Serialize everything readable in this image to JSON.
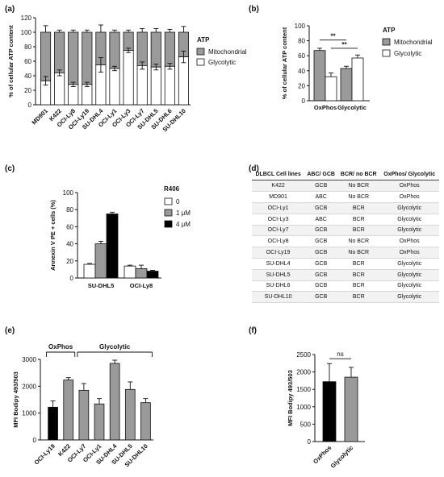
{
  "panels": {
    "a": "(a)",
    "b": "(b)",
    "c": "(c)",
    "d": "(d)",
    "e": "(e)",
    "f": "(f)"
  },
  "colors": {
    "mitochondrial": "#9a9a9a",
    "glycolytic": "#ffffff",
    "r0": "#ffffff",
    "r1": "#9a9a9a",
    "r4": "#000000",
    "bodipy": "#9a9a9a",
    "bodipy_f": "#000000",
    "bodipy_f2": "#9a9a9a"
  },
  "chart_data": [
    {
      "panel": "a",
      "type": "bar",
      "stacked": true,
      "ylabel": "% of cellular ATP content",
      "ylim": [
        0,
        120
      ],
      "yticks": [
        0,
        20,
        40,
        60,
        80,
        100,
        120
      ],
      "legend_title": "ATP",
      "legend_position": "right",
      "categories": [
        "MD901",
        "K422",
        "OCI-Ly8",
        "OCI-Ly19",
        "SU-DHL4",
        "OCI-Ly1",
        "OCI-Ly3",
        "OCI-Ly7",
        "SU-DHL5",
        "SU-DHL6",
        "SU-DHL10"
      ],
      "series": [
        {
          "name": "Glycolytic",
          "values": [
            33,
            44,
            28,
            28,
            55,
            50,
            75,
            54,
            52,
            53,
            66
          ],
          "errors": [
            6,
            4,
            3,
            3,
            10,
            3,
            3,
            5,
            4,
            4,
            8
          ]
        },
        {
          "name": "Mitochondrial",
          "values": [
            67,
            56,
            72,
            72,
            45,
            50,
            25,
            46,
            48,
            47,
            34
          ],
          "errors": [
            9,
            3,
            3,
            3,
            10,
            3,
            3,
            5,
            5,
            4,
            8
          ]
        }
      ]
    },
    {
      "panel": "b",
      "type": "bar",
      "grouped": true,
      "ylabel": "% of cellular ATP content",
      "ylim": [
        0,
        100
      ],
      "yticks": [
        0,
        20,
        40,
        60,
        80,
        100
      ],
      "legend_title": "ATP",
      "legend_position": "right",
      "categories": [
        "OxPhos",
        "Glycolytic"
      ],
      "series": [
        {
          "name": "Mitochondrial",
          "values": [
            67,
            43
          ],
          "errors": [
            3,
            3
          ]
        },
        {
          "name": "Glycolytic",
          "values": [
            32,
            57
          ],
          "errors": [
            5,
            4
          ]
        }
      ],
      "annotations": [
        "**",
        "**"
      ]
    },
    {
      "panel": "c",
      "type": "bar",
      "grouped": true,
      "ylabel": "Annexin V PE + cells (%)",
      "ylim": [
        0,
        100
      ],
      "yticks": [
        0,
        20,
        40,
        60,
        80,
        100
      ],
      "legend_title": "R406",
      "legend_position": "right",
      "categories": [
        "SU-DHL5",
        "OCI-Ly8"
      ],
      "series": [
        {
          "name": "0",
          "values": [
            16,
            14
          ],
          "errors": [
            1,
            1
          ]
        },
        {
          "name": "1 μM",
          "values": [
            40,
            11
          ],
          "errors": [
            3,
            4
          ]
        },
        {
          "name": "4 μM",
          "values": [
            75,
            8
          ],
          "errors": [
            2,
            1
          ]
        }
      ]
    },
    {
      "panel": "e",
      "type": "bar",
      "ylabel": "MFI Bodipy 493/503",
      "ylim": [
        0,
        3000
      ],
      "yticks": [
        0,
        1000,
        2000,
        3000
      ],
      "group_labels": [
        "OxPhos",
        "Glycolytic"
      ],
      "categories": [
        "OCI-Ly19",
        "K422",
        "OCI-Ly7",
        "OCI-Ly1",
        "SU-DHL4",
        "SU-DHL5",
        "SU-DHL10"
      ],
      "values": [
        1220,
        2230,
        1850,
        1340,
        2850,
        1880,
        1390
      ],
      "errors": [
        230,
        90,
        250,
        200,
        120,
        280,
        150
      ]
    },
    {
      "panel": "f",
      "type": "bar",
      "ylabel": "MFI Bodipy 493/503",
      "ylim": [
        0,
        2500
      ],
      "yticks": [
        0,
        500,
        1000,
        1500,
        2000,
        2500
      ],
      "categories": [
        "OxPhos",
        "Glycolytic"
      ],
      "values": [
        1720,
        1850
      ],
      "errors": [
        520,
        280
      ],
      "annotation": "ns"
    }
  ],
  "table_d": {
    "headers": [
      "DLBCL Cell lines",
      "ABC/ GCB",
      "BCR/ no BCR",
      "OxPhos/ Glycolytic"
    ],
    "rows": [
      [
        "K422",
        "GCB",
        "No BCR",
        "OxPhos"
      ],
      [
        "MD901",
        "ABC",
        "No BCR",
        "OxPhos"
      ],
      [
        "OCI-Ly1",
        "GCB",
        "BCR",
        "Glycolytic"
      ],
      [
        "OCI-Ly3",
        "ABC",
        "BCR",
        "Glycolytic"
      ],
      [
        "OCI-Ly7",
        "GCB",
        "BCR",
        "Glycolytic"
      ],
      [
        "OCI-Ly8",
        "GCB",
        "No BCR",
        "OxPhos"
      ],
      [
        "OCI-Ly19",
        "GCB",
        "No BCR",
        "OxPhos"
      ],
      [
        "SU-DHL4",
        "GCB",
        "BCR",
        "Glycolytic"
      ],
      [
        "SU-DHL5",
        "GCB",
        "BCR",
        "Glycolytic"
      ],
      [
        "SU-DHL6",
        "GCB",
        "BCR",
        "Glycolytic"
      ],
      [
        "SU-DHL10",
        "GCB",
        "BCR",
        "Glycolytic"
      ]
    ]
  }
}
